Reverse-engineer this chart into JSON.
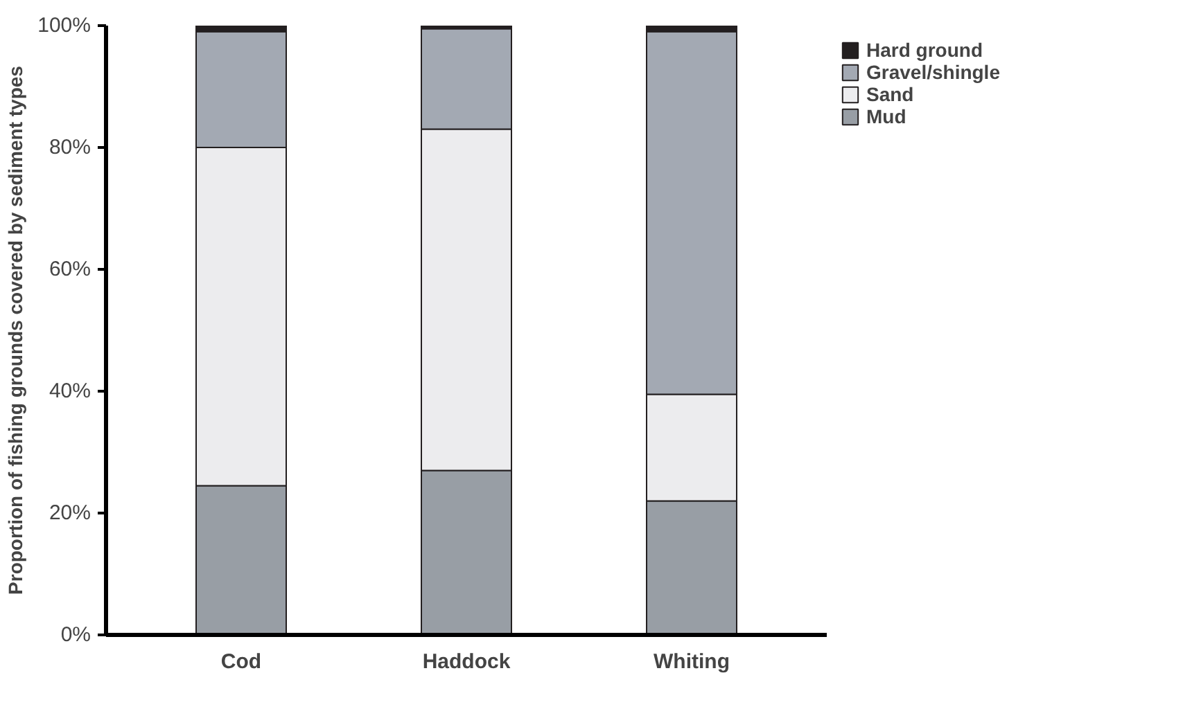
{
  "chart_data": {
    "type": "bar",
    "stacked": true,
    "ylabel": "Proportion of fishing grounds covered by sediment types",
    "categories": [
      "Cod",
      "Haddock",
      "Whiting"
    ],
    "series": [
      {
        "name": "Mud",
        "color": "#989ea5",
        "values": [
          24.5,
          27,
          22
        ]
      },
      {
        "name": "Sand",
        "color": "#ececee",
        "values": [
          55.5,
          56,
          17.5
        ]
      },
      {
        "name": "Gravel/shingle",
        "color": "#a3a9b3",
        "values": [
          19,
          16.5,
          59.5
        ]
      },
      {
        "name": "Hard ground",
        "color": "#231f20",
        "values": [
          1,
          0.5,
          1
        ]
      }
    ],
    "ylim": [
      0,
      100
    ],
    "yticks": [
      {
        "value": 0,
        "label": "0%"
      },
      {
        "value": 20,
        "label": "20%"
      },
      {
        "value": 40,
        "label": "40%"
      },
      {
        "value": 60,
        "label": "60%"
      },
      {
        "value": 80,
        "label": "80%"
      },
      {
        "value": 100,
        "label": "100%"
      }
    ],
    "grid": false,
    "legend": "top right"
  }
}
